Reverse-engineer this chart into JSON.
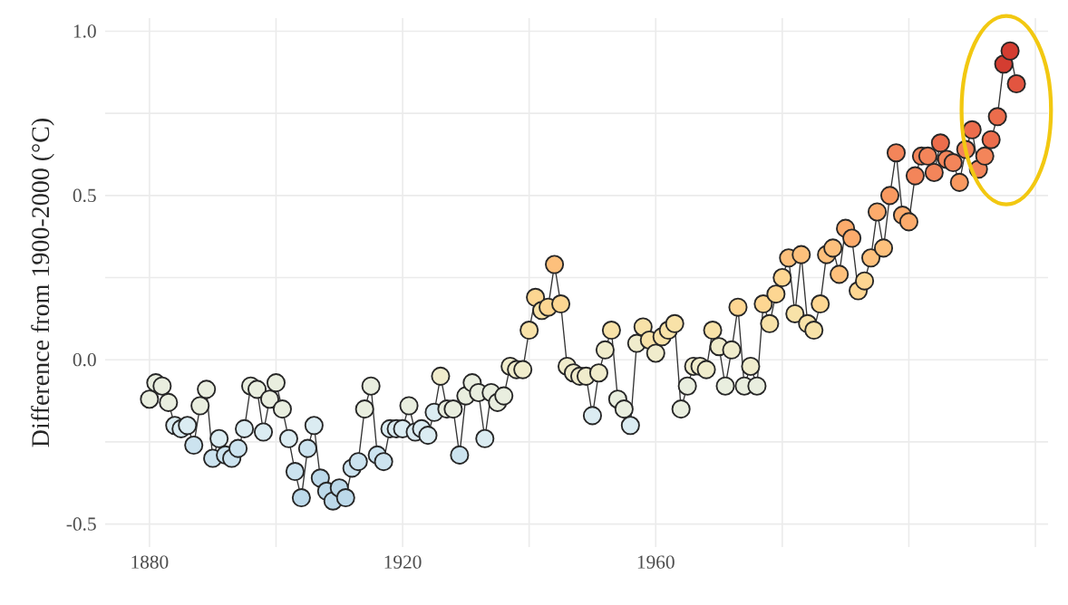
{
  "chart_data": {
    "type": "line",
    "ylabel": "Difference from 1900-2000 (°C)",
    "x": [
      1880,
      1881,
      1882,
      1883,
      1884,
      1885,
      1886,
      1887,
      1888,
      1889,
      1890,
      1891,
      1892,
      1893,
      1894,
      1895,
      1896,
      1897,
      1898,
      1899,
      1900,
      1901,
      1902,
      1903,
      1904,
      1905,
      1906,
      1907,
      1908,
      1909,
      1910,
      1911,
      1912,
      1913,
      1914,
      1915,
      1916,
      1917,
      1918,
      1919,
      1920,
      1921,
      1922,
      1923,
      1924,
      1925,
      1926,
      1927,
      1928,
      1929,
      1930,
      1931,
      1932,
      1933,
      1934,
      1935,
      1936,
      1937,
      1938,
      1939,
      1940,
      1941,
      1942,
      1943,
      1944,
      1945,
      1946,
      1947,
      1948,
      1949,
      1950,
      1951,
      1952,
      1953,
      1954,
      1955,
      1956,
      1957,
      1958,
      1959,
      1960,
      1961,
      1962,
      1963,
      1964,
      1965,
      1966,
      1967,
      1968,
      1969,
      1970,
      1971,
      1972,
      1973,
      1974,
      1975,
      1976,
      1977,
      1978,
      1979,
      1980,
      1981,
      1982,
      1983,
      1984,
      1985,
      1986,
      1987,
      1988,
      1989,
      1990,
      1991,
      1992,
      1993,
      1994,
      1995,
      1996,
      1997,
      1998,
      1999,
      2000,
      2001,
      2002,
      2003,
      2004,
      2005,
      2006,
      2007,
      2008,
      2009,
      2010,
      2011,
      2012,
      2013,
      2014,
      2015,
      2016,
      2017
    ],
    "series": [
      {
        "color": "#333333",
        "values": [
          -0.12,
          -0.07,
          -0.08,
          -0.13,
          -0.2,
          -0.21,
          -0.2,
          -0.26,
          -0.14,
          -0.09,
          -0.3,
          -0.24,
          -0.29,
          -0.3,
          -0.27,
          -0.21,
          -0.08,
          -0.09,
          -0.22,
          -0.12,
          -0.07,
          -0.15,
          -0.24,
          -0.34,
          -0.42,
          -0.27,
          -0.2,
          -0.36,
          -0.4,
          -0.43,
          -0.39,
          -0.42,
          -0.33,
          -0.31,
          -0.15,
          -0.08,
          -0.29,
          -0.31,
          -0.21,
          -0.21,
          -0.21,
          -0.14,
          -0.22,
          -0.21,
          -0.23,
          -0.16,
          -0.05,
          -0.15,
          -0.15,
          -0.29,
          -0.11,
          -0.07,
          -0.1,
          -0.24,
          -0.1,
          -0.13,
          -0.11,
          -0.02,
          -0.03,
          -0.03,
          0.09,
          0.19,
          0.15,
          0.16,
          0.29,
          0.17,
          -0.02,
          -0.04,
          -0.05,
          -0.05,
          -0.17,
          -0.04,
          0.03,
          0.09,
          -0.12,
          -0.15,
          -0.2,
          0.05,
          0.1,
          0.06,
          0.02,
          0.07,
          0.09,
          0.11,
          -0.15,
          -0.08,
          -0.02,
          -0.02,
          -0.03,
          0.09,
          0.04,
          -0.08,
          0.03,
          0.16,
          -0.08,
          -0.02,
          -0.08,
          0.17,
          0.11,
          0.2,
          0.25,
          0.31,
          0.14,
          0.32,
          0.11,
          0.09,
          0.17,
          0.32,
          0.34,
          0.26,
          0.4,
          0.37,
          0.21,
          0.24,
          0.31,
          0.45,
          0.34,
          0.5,
          0.63,
          0.44,
          0.42,
          0.56,
          0.62,
          0.62,
          0.57,
          0.66,
          0.61,
          0.6,
          0.54,
          0.64,
          0.7,
          0.58,
          0.62,
          0.67,
          0.74,
          0.9,
          0.94,
          0.84
        ],
        "colors": [
          "#e9eedf",
          "#e9eedf",
          "#e9eedf",
          "#e9eedf",
          "#dbecf2",
          "#dbecf2",
          "#dbecf2",
          "#cce3ef",
          "#e9eedf",
          "#e9eedf",
          "#cce3ef",
          "#dbecf2",
          "#cce3ef",
          "#cce3ef",
          "#cce3ef",
          "#dbecf2",
          "#e9eedf",
          "#e9eedf",
          "#dbecf2",
          "#e9eedf",
          "#e9eedf",
          "#e9eedf",
          "#dbecf2",
          "#cce3ef",
          "#bcd9ea",
          "#cce3ef",
          "#dbecf2",
          "#bcd9ea",
          "#bcd9ea",
          "#bcd9ea",
          "#bcd9ea",
          "#bcd9ea",
          "#cce3ef",
          "#cce3ef",
          "#e9eedf",
          "#e9eedf",
          "#cce3ef",
          "#cce3ef",
          "#dbecf2",
          "#dbecf2",
          "#dbecf2",
          "#e9eedf",
          "#dbecf2",
          "#dbecf2",
          "#dbecf2",
          "#dbecf2",
          "#f0eccc",
          "#e9eedf",
          "#e9eedf",
          "#cce3ef",
          "#e9eedf",
          "#e9eedf",
          "#e9eedf",
          "#dbecf2",
          "#e9eedf",
          "#e9eedf",
          "#e9eedf",
          "#f0eccc",
          "#f0eccc",
          "#f0eccc",
          "#f8e2a8",
          "#fdd692",
          "#f8e2a8",
          "#fdd692",
          "#fdc07c",
          "#fdd692",
          "#f0eccc",
          "#f0eccc",
          "#f0eccc",
          "#f0eccc",
          "#dbecf2",
          "#f0eccc",
          "#f0eccc",
          "#f8e2a8",
          "#e9eedf",
          "#e9eedf",
          "#dbecf2",
          "#f0eccc",
          "#f8e2a8",
          "#f8e2a8",
          "#f0eccc",
          "#f8e2a8",
          "#f8e2a8",
          "#f8e2a8",
          "#e9eedf",
          "#e9eedf",
          "#f0eccc",
          "#f0eccc",
          "#f0eccc",
          "#f8e2a8",
          "#f0eccc",
          "#e9eedf",
          "#f0eccc",
          "#fdd692",
          "#e9eedf",
          "#f0eccc",
          "#e9eedf",
          "#fdd692",
          "#f8e2a8",
          "#fdd692",
          "#fdd692",
          "#fdc07c",
          "#f8e2a8",
          "#fdc07c",
          "#f8e2a8",
          "#f8e2a8",
          "#fdd692",
          "#fdc07c",
          "#fdc07c",
          "#fdc07c",
          "#fcab6c",
          "#fcab6c",
          "#fdd692",
          "#fdd692",
          "#fdc07c",
          "#fcab6c",
          "#fdc07c",
          "#f99960",
          "#f3855a",
          "#fcab6c",
          "#fcab6c",
          "#f3855a",
          "#f3855a",
          "#f3855a",
          "#f3855a",
          "#ec6d4c",
          "#f3855a",
          "#f3855a",
          "#f99960",
          "#f3855a",
          "#ec6d4c",
          "#f3855a",
          "#f3855a",
          "#ec6d4c",
          "#ec6d4c",
          "#d43d31",
          "#d43d31",
          "#e25540"
        ]
      }
    ],
    "marker": "circle",
    "line_style": "solid",
    "grid": true,
    "xlim": [
      1873,
      2022
    ],
    "ylim": [
      -0.57,
      1.04
    ],
    "xticks": [
      1880,
      {
        "value": 1900,
        "label": null
      },
      1920,
      {
        "value": 1940,
        "label": null
      },
      1960,
      {
        "value": 1980,
        "label": null
      },
      {
        "value": 2000,
        "label": null
      },
      {
        "value": 2020,
        "label": null
      }
    ],
    "yticks": [
      -0.5,
      {
        "value": -0.25,
        "label": null
      },
      {
        "value": 0,
        "label": "0.0"
      },
      {
        "value": 0.25,
        "label": null
      },
      0.5,
      {
        "value": 0.75,
        "label": null
      },
      {
        "value": 1,
        "label": "1.0"
      }
    ]
  }
}
